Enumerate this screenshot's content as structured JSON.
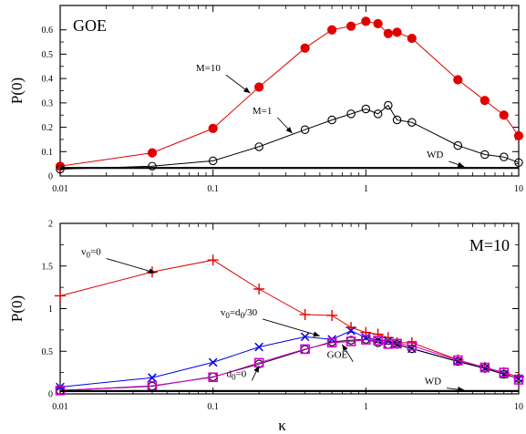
{
  "chart_data": [
    {
      "type": "line",
      "xscale": "log",
      "xlim": [
        0.01,
        10
      ],
      "ylim": [
        0,
        0.7
      ],
      "xticks": [
        0.01,
        0.1,
        1,
        10
      ],
      "xtick_labels": [
        "0.01",
        "0.1",
        "1",
        "10"
      ],
      "yticks": [
        0,
        0.1,
        0.2,
        0.3,
        0.4,
        0.5,
        0.6
      ],
      "ytick_labels": [
        "0",
        "0.1",
        "0.2",
        "0.3",
        "0.4",
        "0.5",
        "0.6"
      ],
      "xlabel": "",
      "ylabel": "P(0)",
      "panel_label": "GOE",
      "grid": false,
      "series": [
        {
          "name": "M=10",
          "color": "#e00000",
          "marker": "filled-circle",
          "x": [
            0.01,
            0.04,
            0.1,
            0.2,
            0.4,
            0.6,
            0.8,
            1.0,
            1.2,
            1.4,
            1.6,
            2.0,
            4.0,
            6.0,
            8.0,
            10.0
          ],
          "y": [
            0.04,
            0.095,
            0.195,
            0.365,
            0.525,
            0.6,
            0.615,
            0.635,
            0.625,
            0.585,
            0.59,
            0.565,
            0.395,
            0.31,
            0.25,
            0.165
          ]
        },
        {
          "name": "M=1",
          "color": "#000000",
          "marker": "open-circle",
          "x": [
            0.01,
            0.04,
            0.1,
            0.2,
            0.4,
            0.6,
            0.8,
            1.0,
            1.2,
            1.4,
            1.6,
            2.0,
            4.0,
            6.0,
            8.0,
            10.0
          ],
          "y": [
            0.028,
            0.04,
            0.062,
            0.12,
            0.19,
            0.23,
            0.255,
            0.275,
            0.255,
            0.29,
            0.23,
            0.22,
            0.125,
            0.088,
            0.078,
            0.055
          ]
        },
        {
          "name": "WD",
          "color": "#000000",
          "marker": "none",
          "x": [
            0.01,
            10.0
          ],
          "y": [
            0.033,
            0.033
          ]
        }
      ],
      "annotations": [
        {
          "text": "M=10",
          "x": 0.115,
          "y": 0.43,
          "arrow_to_x": 0.175,
          "arrow_to_y": 0.34
        },
        {
          "text": "M=1",
          "x": 0.25,
          "y": 0.255,
          "arrow_to_x": 0.33,
          "arrow_to_y": 0.175
        },
        {
          "text": "WD",
          "x": 3.3,
          "y": 0.075,
          "arrow_to_x": 4.4,
          "arrow_to_y": 0.038
        }
      ]
    },
    {
      "type": "line",
      "xscale": "log",
      "xlim": [
        0.01,
        10
      ],
      "ylim": [
        0,
        2
      ],
      "xticks": [
        0.01,
        0.1,
        1,
        10
      ],
      "xtick_labels": [
        "0.01",
        "0.1",
        "1",
        "10"
      ],
      "yticks": [
        0,
        0.5,
        1,
        1.5,
        2
      ],
      "ytick_labels": [
        "0",
        "0.5",
        "1",
        "1.5",
        "2"
      ],
      "xlabel": "κ",
      "ylabel": "P(0)",
      "panel_label": "M=10",
      "grid": false,
      "series": [
        {
          "name": "v0=0",
          "color": "#e00000",
          "marker": "plus",
          "x": [
            0.01,
            0.04,
            0.1,
            0.2,
            0.4,
            0.6,
            0.8,
            1.0,
            1.2,
            1.4,
            1.6,
            2.0,
            4.0,
            6.0,
            8.0,
            10.0
          ],
          "y": [
            1.15,
            1.43,
            1.57,
            1.23,
            0.93,
            0.92,
            0.78,
            0.72,
            0.7,
            0.66,
            0.6,
            0.6,
            0.4,
            0.31,
            0.25,
            0.2
          ]
        },
        {
          "name": "v0=d0/30",
          "color": "#0000e0",
          "marker": "cross",
          "x": [
            0.01,
            0.04,
            0.1,
            0.2,
            0.4,
            0.6,
            0.8,
            1.0,
            1.2,
            1.4,
            1.6,
            2.0,
            4.0,
            6.0,
            8.0,
            10.0
          ],
          "y": [
            0.08,
            0.19,
            0.37,
            0.55,
            0.67,
            0.64,
            0.74,
            0.66,
            0.63,
            0.62,
            0.58,
            0.53,
            0.38,
            0.3,
            0.23,
            0.18
          ]
        },
        {
          "name": "d0=0",
          "color": "#000000",
          "marker": "open-circle",
          "x": [
            0.01,
            0.04,
            0.1,
            0.2,
            0.4,
            0.6,
            0.8,
            1.0,
            1.2,
            1.4,
            1.6,
            2.0,
            4.0,
            6.0,
            8.0,
            10.0
          ],
          "y": [
            0.04,
            0.09,
            0.2,
            0.35,
            0.52,
            0.61,
            0.63,
            0.64,
            0.6,
            0.58,
            0.58,
            0.53,
            0.38,
            0.3,
            0.23,
            0.18
          ]
        },
        {
          "name": "GOE",
          "color": "#d000d0",
          "marker": "open-square",
          "x": [
            0.01,
            0.04,
            0.1,
            0.2,
            0.4,
            0.6,
            0.8,
            1.0,
            1.2,
            1.4,
            1.6,
            2.0,
            4.0,
            6.0,
            8.0,
            10.0
          ],
          "y": [
            0.04,
            0.095,
            0.195,
            0.365,
            0.525,
            0.6,
            0.615,
            0.635,
            0.625,
            0.585,
            0.59,
            0.565,
            0.395,
            0.31,
            0.25,
            0.165
          ]
        },
        {
          "name": "WD",
          "color": "#000000",
          "marker": "none",
          "x": [
            0.01,
            10.0
          ],
          "y": [
            0.033,
            0.033
          ]
        }
      ],
      "annotations": [
        {
          "text": "v0=0",
          "base": "v",
          "sub": "0",
          "rest": "=0",
          "x": 0.019,
          "y": 1.63,
          "arrow_to_x": 0.042,
          "arrow_to_y": 1.42
        },
        {
          "text": "v0=d0/30",
          "base": "v",
          "sub": "0",
          "rest": "=d",
          "sub2": "0",
          "rest2": "/30",
          "x": 0.2,
          "y": 0.92,
          "arrow_to_x": 0.5,
          "arrow_to_y": 0.68
        },
        {
          "text": "d0=0",
          "base": "d",
          "sub": "0",
          "rest": "=0",
          "x": 0.17,
          "y": 0.2,
          "arrow_to_x": 0.2,
          "arrow_to_y": 0.33
        },
        {
          "text": "GOE",
          "x": 0.78,
          "y": 0.42,
          "arrow_to_x": 0.7,
          "arrow_to_y": 0.58
        },
        {
          "text": "WD",
          "x": 3.2,
          "y": 0.11,
          "arrow_to_x": 4.4,
          "arrow_to_y": 0.045
        }
      ]
    }
  ]
}
